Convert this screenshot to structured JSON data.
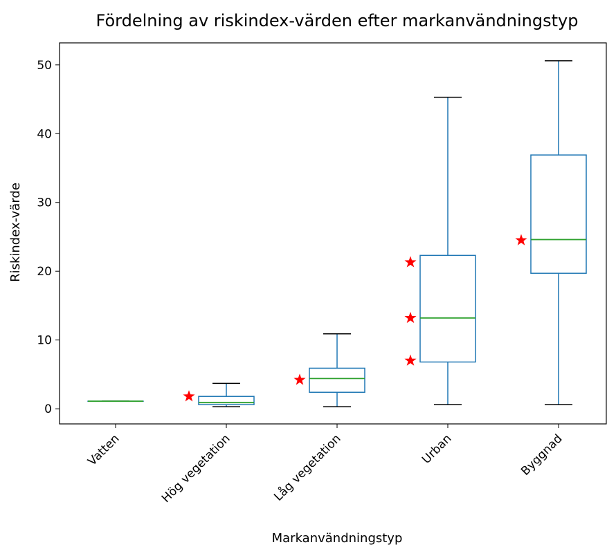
{
  "chart_data": {
    "type": "box",
    "title": "Fördelning av riskindex-värden efter markanvändningstyp",
    "xlabel": "Markanvändningstyp",
    "ylabel": "Riskindex-värde",
    "ylim": [
      -2.2,
      53.2
    ],
    "yticks": [
      0,
      10,
      20,
      30,
      40,
      50
    ],
    "categories": [
      "Vatten",
      "Hög vegetation",
      "Låg vegetation",
      "Urban",
      "Byggnad"
    ],
    "boxes": [
      {
        "category": "Vatten",
        "whisker_low": 1.1,
        "q1": 1.1,
        "median": 1.1,
        "q3": 1.1,
        "whisker_high": 1.1
      },
      {
        "category": "Hög vegetation",
        "whisker_low": 0.3,
        "q1": 0.6,
        "median": 0.9,
        "q3": 1.8,
        "whisker_high": 3.7
      },
      {
        "category": "Låg vegetation",
        "whisker_low": 0.3,
        "q1": 2.4,
        "median": 4.4,
        "q3": 5.9,
        "whisker_high": 10.9
      },
      {
        "category": "Urban",
        "whisker_low": 0.6,
        "q1": 6.8,
        "median": 13.2,
        "q3": 22.3,
        "whisker_high": 45.3
      },
      {
        "category": "Byggnad",
        "whisker_low": 0.6,
        "q1": 19.7,
        "median": 24.6,
        "q3": 36.9,
        "whisker_high": 50.6
      }
    ],
    "star_markers": [
      {
        "category": "Hög vegetation",
        "values": [
          1.8
        ]
      },
      {
        "category": "Låg vegetation",
        "values": [
          4.2
        ]
      },
      {
        "category": "Urban",
        "values": [
          21.3,
          13.2,
          7.0
        ]
      },
      {
        "category": "Byggnad",
        "values": [
          24.5
        ]
      }
    ],
    "grid": false,
    "colors": {
      "box": "#1f77b4",
      "median": "#2ca02c",
      "cap": "#000000",
      "star": "#ff0000"
    }
  }
}
